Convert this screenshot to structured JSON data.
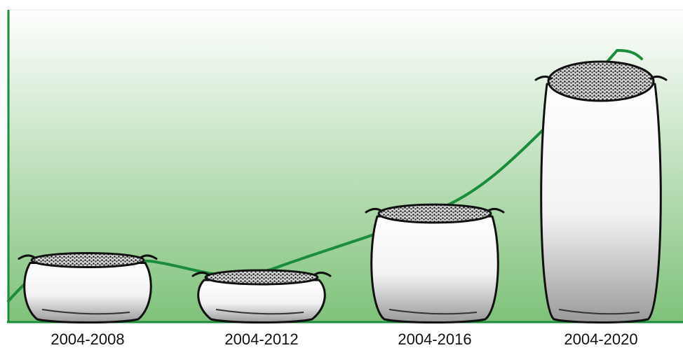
{
  "chart_data": {
    "type": "pictogram",
    "categories": [
      "2004-2008",
      "2004-2012",
      "2004-2016",
      "2004-2020"
    ],
    "values": [
      27,
      20,
      46,
      100
    ],
    "color": "#1a8c3a"
  }
}
